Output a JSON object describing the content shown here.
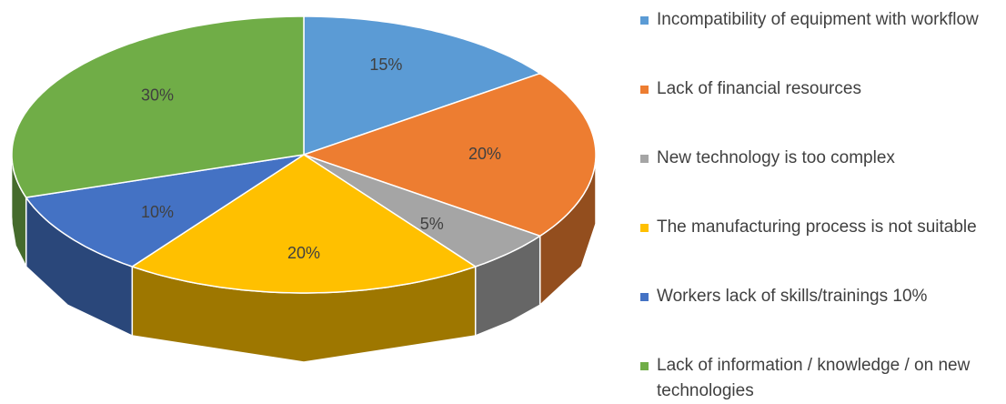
{
  "chart_data": {
    "type": "pie3d",
    "categories": [
      "Incompatibility of equipment with workflow",
      "Lack of financial resources",
      "New technology is too complex",
      "The manufacturing process is not suitable",
      "Workers lack of skills/trainings 10%",
      "Lack of information / knowledge / on new technologies"
    ],
    "values": [
      15,
      20,
      5,
      20,
      10,
      30
    ],
    "value_labels": [
      "15%",
      "20%",
      "5%",
      "20%",
      "10%",
      "30%"
    ],
    "colors": [
      "#5b9bd5",
      "#ed7d31",
      "#a5a5a5",
      "#ffc000",
      "#4472c4",
      "#70ad47"
    ],
    "legend": "right"
  }
}
